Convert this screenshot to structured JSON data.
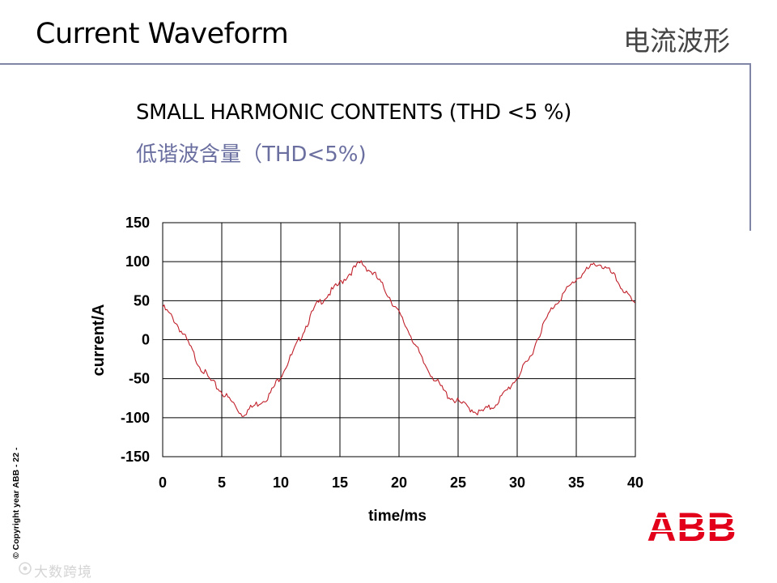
{
  "slide": {
    "title": "Current Waveform",
    "title_cn": "电流波形",
    "subtitle": "SMALL HARMONIC CONTENTS (THD <5 %)",
    "subtitle_cn": "低谐波含量（THD<5%)",
    "copyright": "© Copyright year ABB - 22 -",
    "watermark": "大数跨境",
    "logo": "ABB",
    "logo_color": "#e2001a",
    "accent_rule_color": "#7f86a6"
  },
  "chart_data": {
    "type": "line",
    "xlabel": "time/ms",
    "ylabel": "current/A",
    "xlim": [
      0,
      40
    ],
    "ylim": [
      -150,
      150
    ],
    "xticks": [
      0,
      5,
      10,
      15,
      20,
      25,
      30,
      35,
      40
    ],
    "yticks": [
      150,
      100,
      50,
      0,
      -50,
      -100,
      -150
    ],
    "grid": true,
    "series": [
      {
        "color": "#c0202a",
        "x": [
          0,
          1,
          2,
          3,
          4,
          5,
          6,
          6.7,
          8,
          9,
          10,
          11,
          12,
          13,
          14,
          15,
          16,
          16.8,
          18,
          19,
          20,
          21,
          22,
          23,
          24,
          25,
          26,
          26.8,
          28,
          29,
          30,
          31,
          32,
          33,
          34,
          35,
          36,
          36.8,
          38,
          39,
          40
        ],
        "y": [
          42,
          25,
          0,
          -30,
          -52,
          -67,
          -82,
          -96,
          -82,
          -72,
          -45,
          -18,
          14,
          44,
          58,
          72,
          88,
          99,
          82,
          60,
          33,
          6,
          -28,
          -50,
          -70,
          -80,
          -88,
          -94,
          -85,
          -68,
          -48,
          -26,
          12,
          42,
          60,
          78,
          90,
          99,
          85,
          64,
          42
        ]
      }
    ]
  }
}
